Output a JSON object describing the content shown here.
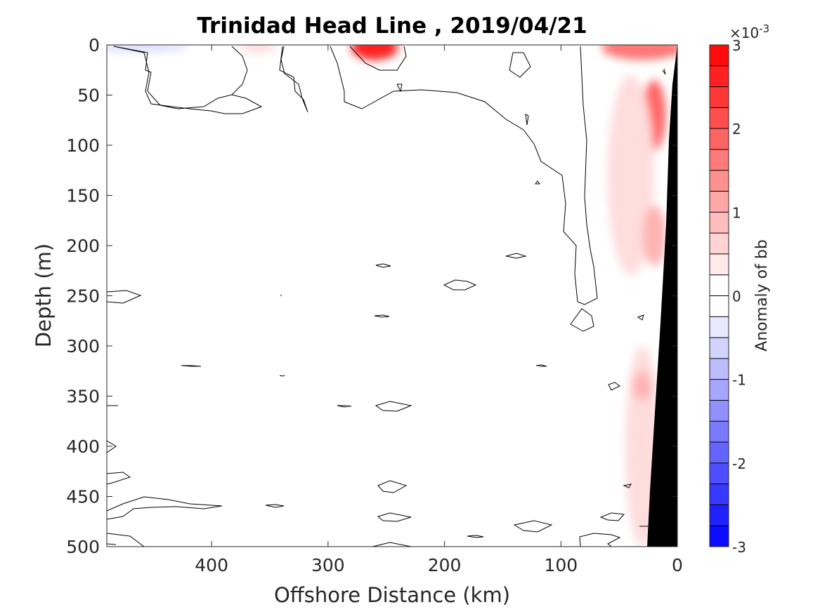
{
  "chart_data": {
    "type": "heatmap",
    "title": "Trinidad Head Line , 2019/04/21",
    "xlabel": "Offshore Distance (km)",
    "ylabel": "Depth (m)",
    "xlim": [
      490,
      0
    ],
    "ylim": [
      0,
      500
    ],
    "x_reversed": true,
    "y_reversed": true,
    "xticks": [
      400,
      300,
      200,
      100,
      0
    ],
    "yticks": [
      0,
      50,
      100,
      150,
      200,
      250,
      300,
      350,
      400,
      450,
      500
    ],
    "colorbar": {
      "label": "Anomaly of bb",
      "multiplier": "×10",
      "exponent": "-3",
      "clim": [
        -3,
        3
      ],
      "ticks": [
        3,
        2,
        1,
        0,
        -1,
        -2,
        -3
      ],
      "levels": 24,
      "colors": {
        "positive": "#ff0000",
        "negative": "#0000ff",
        "zero": "#ffffff"
      }
    },
    "bathymetry_color": "#000000",
    "anomaly_patches": [
      {
        "x": 260,
        "y": 3,
        "rx": 20,
        "ry": 12,
        "value": 2.6
      },
      {
        "x": 30,
        "y": 3,
        "rx": 35,
        "ry": 12,
        "value": 1.6
      },
      {
        "x": 20,
        "y": 70,
        "rx": 10,
        "ry": 35,
        "value": 1.8
      },
      {
        "x": 40,
        "y": 130,
        "rx": 20,
        "ry": 100,
        "value": 0.4
      },
      {
        "x": 30,
        "y": 400,
        "rx": 15,
        "ry": 100,
        "value": 0.4
      },
      {
        "x": 30,
        "y": 340,
        "rx": 8,
        "ry": 15,
        "value": 0.9
      },
      {
        "x": 20,
        "y": 190,
        "rx": 10,
        "ry": 30,
        "value": 0.9
      },
      {
        "x": 360,
        "y": 2,
        "rx": 15,
        "ry": 6,
        "value": 0.4
      },
      {
        "x": 460,
        "y": 2,
        "rx": 40,
        "ry": 5,
        "value": -0.4
      }
    ],
    "contour_level": 0
  }
}
